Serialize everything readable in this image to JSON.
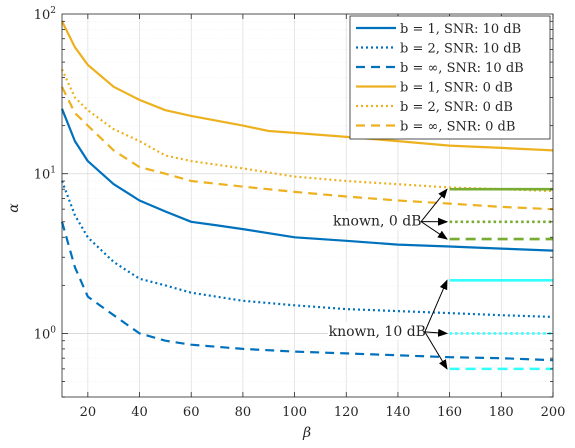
{
  "chart_data": {
    "type": "line",
    "xlabel": "β",
    "ylabel": "α",
    "xscale": "linear",
    "yscale": "log",
    "xlim": [
      10,
      200
    ],
    "ylim": [
      0.4,
      100
    ],
    "grid": true,
    "minor_grid": true,
    "x_ticks": [
      "20",
      "40",
      "60",
      "80",
      "100",
      "120",
      "140",
      "160",
      "180",
      "200"
    ],
    "y_ticks": [
      {
        "base": "10",
        "exp": "0",
        "value": 1
      },
      {
        "base": "10",
        "exp": "1",
        "value": 10
      },
      {
        "base": "10",
        "exp": "2",
        "value": 100
      }
    ],
    "legend_position": "top-right",
    "colors": {
      "blue": "#0072bd",
      "orange": "#edb120",
      "green": "#77ac30",
      "cyan": "#33ffff"
    },
    "series": [
      {
        "name": "b = 1, SNR: 10 dB",
        "color": "#0072bd",
        "dash": "solid",
        "x": [
          10,
          15,
          20,
          30,
          40,
          50,
          60,
          70,
          80,
          100,
          120,
          140,
          160,
          180,
          200
        ],
        "y": [
          25.5,
          16,
          12,
          8.6,
          6.8,
          5.8,
          5.0,
          4.75,
          4.5,
          4.0,
          3.8,
          3.6,
          3.5,
          3.4,
          3.3
        ]
      },
      {
        "name": "b = 2, SNR: 10 dB",
        "color": "#0072bd",
        "dash": "dotted",
        "x": [
          10,
          15,
          20,
          30,
          40,
          50,
          60,
          80,
          100,
          120,
          140,
          160,
          180,
          200
        ],
        "y": [
          9.0,
          5.5,
          4.0,
          2.8,
          2.2,
          2.0,
          1.8,
          1.6,
          1.5,
          1.42,
          1.38,
          1.34,
          1.3,
          1.27
        ]
      },
      {
        "name": "b = ∞, SNR: 10 dB",
        "color": "#0072bd",
        "dash": "dashed",
        "x": [
          10,
          15,
          20,
          30,
          40,
          50,
          60,
          80,
          100,
          120,
          140,
          160,
          180,
          200
        ],
        "y": [
          5.0,
          2.6,
          1.7,
          1.3,
          1.0,
          0.9,
          0.85,
          0.8,
          0.77,
          0.75,
          0.73,
          0.71,
          0.7,
          0.68
        ]
      },
      {
        "name": "b = 1, SNR: 0 dB",
        "color": "#edb120",
        "dash": "solid",
        "x": [
          10,
          15,
          20,
          30,
          40,
          50,
          60,
          80,
          90,
          100,
          120,
          140,
          160,
          180,
          200
        ],
        "y": [
          90,
          62,
          48,
          35,
          29,
          25,
          23,
          20,
          18.5,
          18,
          17,
          16,
          15,
          14.5,
          14
        ]
      },
      {
        "name": "b = 2, SNR: 0 dB",
        "color": "#edb120",
        "dash": "dotted",
        "x": [
          10,
          15,
          20,
          30,
          40,
          50,
          60,
          80,
          100,
          120,
          140,
          160,
          180,
          200
        ],
        "y": [
          45,
          30,
          25,
          19,
          16,
          13,
          12,
          10.8,
          9.6,
          9.0,
          8.6,
          8.2,
          8.0,
          7.8
        ]
      },
      {
        "name": "b = ∞, SNR: 0 dB",
        "color": "#edb120",
        "dash": "dashed",
        "x": [
          10,
          15,
          20,
          30,
          40,
          50,
          60,
          80,
          100,
          120,
          140,
          160,
          180,
          200
        ],
        "y": [
          35,
          24,
          20,
          14,
          11,
          10,
          9,
          8.3,
          7.7,
          7.2,
          6.8,
          6.5,
          6.2,
          6.0
        ]
      }
    ],
    "known_lines": [
      {
        "color": "#77ac30",
        "dash": "solid",
        "x": [
          160,
          200
        ],
        "y": 8.0
      },
      {
        "color": "#77ac30",
        "dash": "dotted",
        "x": [
          160,
          200
        ],
        "y": 5.0
      },
      {
        "color": "#77ac30",
        "dash": "dashed",
        "x": [
          160,
          200
        ],
        "y": 3.9
      },
      {
        "color": "#33ffff",
        "dash": "solid",
        "x": [
          160,
          200
        ],
        "y": 2.15
      },
      {
        "color": "#33ffff",
        "dash": "dotted",
        "x": [
          160,
          200
        ],
        "y": 1.0
      },
      {
        "color": "#33ffff",
        "dash": "dashed",
        "x": [
          160,
          200
        ],
        "y": 0.6
      }
    ],
    "annotations": [
      {
        "text": "known, 0 dB",
        "x": 132,
        "y": 4.8,
        "targets": [
          [
            159,
            8.0
          ],
          [
            159,
            5.0
          ],
          [
            159,
            3.9
          ]
        ]
      },
      {
        "text": "known, 10 dB",
        "x": 132,
        "y": 0.98,
        "targets": [
          [
            159,
            2.15
          ],
          [
            159,
            1.0
          ],
          [
            159,
            0.6
          ]
        ]
      }
    ]
  }
}
